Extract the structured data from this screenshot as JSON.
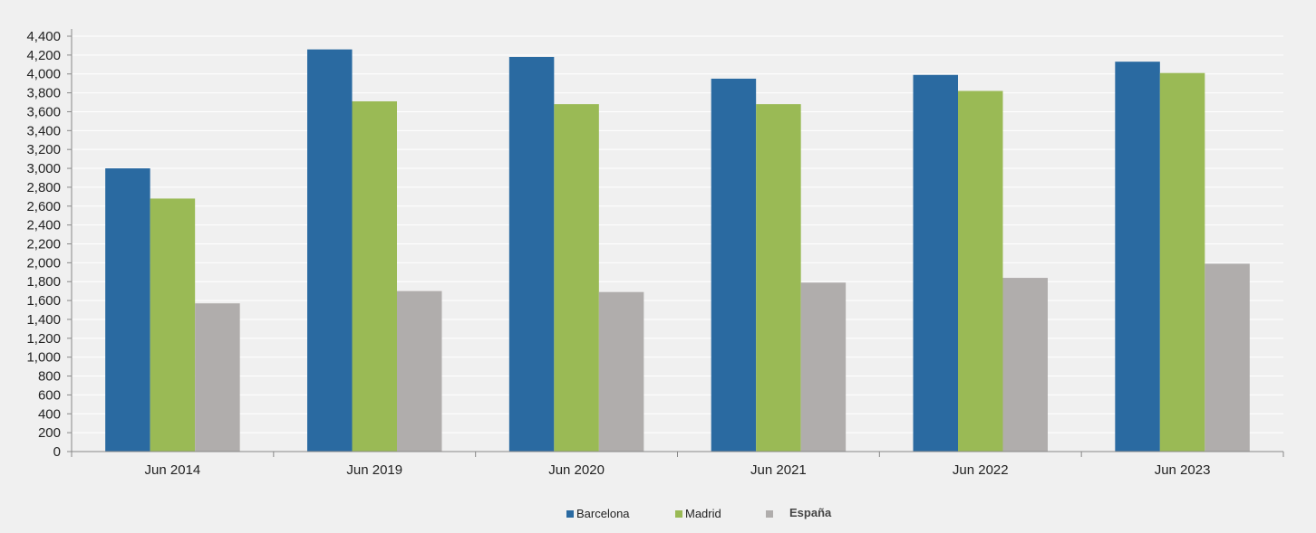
{
  "chart_data": {
    "type": "bar",
    "title": "",
    "xlabel": "",
    "ylabel": "",
    "ylim": [
      0,
      4400
    ],
    "yticks": [
      0,
      200,
      400,
      600,
      800,
      1000,
      1200,
      1400,
      1600,
      1800,
      2000,
      2200,
      2400,
      2600,
      2800,
      3000,
      3200,
      3400,
      3600,
      3800,
      4000,
      4200,
      4400
    ],
    "ytick_labels": [
      "0",
      "200",
      "400",
      "600",
      "800",
      "1,000",
      "1,200",
      "1,400",
      "1,600",
      "1,800",
      "2,000",
      "2,200",
      "2,400",
      "2,600",
      "2,800",
      "3,000",
      "3,200",
      "3,400",
      "3,600",
      "3,800",
      "4,000",
      "4,200",
      "4,400"
    ],
    "categories": [
      "Jun 2014",
      "Jun 2019",
      "Jun 2020",
      "Jun 2021",
      "Jun 2022",
      "Jun 2023"
    ],
    "series": [
      {
        "name": "Barcelona",
        "color": "#2a6aa1",
        "values": [
          3000,
          4260,
          4180,
          3950,
          3990,
          4130
        ]
      },
      {
        "name": "Madrid",
        "color": "#9aba55",
        "values": [
          2680,
          3710,
          3680,
          3680,
          3820,
          4010
        ]
      },
      {
        "name": "España",
        "color": "#b0adac",
        "values": [
          1570,
          1700,
          1690,
          1790,
          1840,
          1990
        ]
      }
    ],
    "grid": true,
    "legend_position": "bottom-center",
    "legend_labels": [
      "Barcelona",
      "Madrid",
      "España"
    ]
  }
}
